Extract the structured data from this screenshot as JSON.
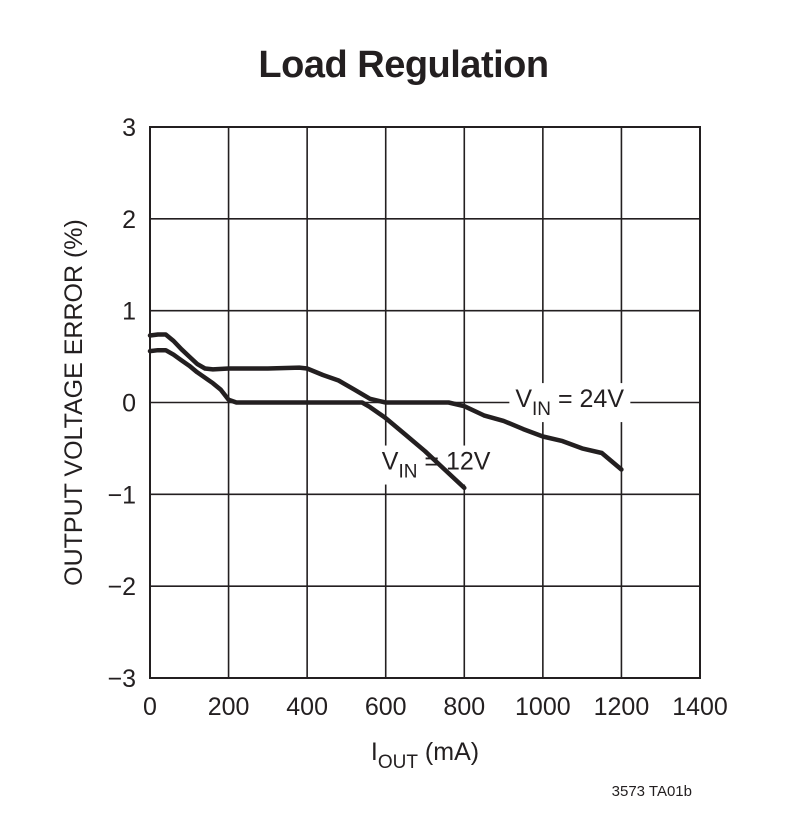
{
  "chart_data": {
    "type": "line",
    "title": "Load Regulation",
    "xlabel": "I_OUT (mA)",
    "xlabel_main": "I",
    "xlabel_sub": "OUT",
    "xlabel_suffix": " (mA)",
    "ylabel": "OUTPUT VOLTAGE ERROR (%)",
    "xlim": [
      0,
      1400
    ],
    "ylim": [
      -3,
      3
    ],
    "xticks": [
      0,
      200,
      400,
      600,
      800,
      1000,
      1200,
      1400
    ],
    "xtick_labels": [
      "0",
      "200",
      "400",
      "600",
      "800",
      "1000",
      "1200",
      "1400"
    ],
    "yticks": [
      3,
      2,
      1,
      0,
      -1,
      -2,
      -3
    ],
    "ytick_labels": [
      "3",
      "2",
      "1",
      "0",
      "−1",
      "−2",
      "−3"
    ],
    "grid": true,
    "series": [
      {
        "name": "VIN = 12V",
        "label_main": "V",
        "label_sub": "IN",
        "label_suffix": " = 12V",
        "x": [
          0,
          20,
          40,
          60,
          80,
          100,
          120,
          140,
          160,
          180,
          200,
          220,
          240,
          260,
          300,
          400,
          500,
          540,
          560,
          600,
          650,
          700,
          750,
          800
        ],
        "y": [
          0.56,
          0.57,
          0.57,
          0.52,
          0.46,
          0.4,
          0.33,
          0.27,
          0.21,
          0.14,
          0.03,
          0.0,
          0.0,
          0.0,
          0.0,
          0.0,
          0.0,
          0.0,
          -0.05,
          -0.17,
          -0.35,
          -0.53,
          -0.73,
          -0.93
        ]
      },
      {
        "name": "VIN = 24V",
        "label_main": "V",
        "label_sub": "IN",
        "label_suffix": " = 24V",
        "x": [
          0,
          20,
          40,
          60,
          80,
          100,
          120,
          140,
          160,
          200,
          300,
          380,
          400,
          440,
          480,
          520,
          560,
          600,
          650,
          700,
          740,
          760,
          800,
          850,
          900,
          950,
          1000,
          1050,
          1100,
          1150,
          1200
        ],
        "y": [
          0.73,
          0.74,
          0.74,
          0.67,
          0.58,
          0.5,
          0.42,
          0.37,
          0.36,
          0.37,
          0.37,
          0.38,
          0.37,
          0.3,
          0.24,
          0.14,
          0.04,
          0.0,
          0.0,
          0.0,
          0.0,
          0.0,
          -0.04,
          -0.14,
          -0.2,
          -0.29,
          -0.37,
          -0.42,
          -0.5,
          -0.55,
          -0.73
        ]
      }
    ],
    "annotations": [
      {
        "series": 0,
        "x": 590,
        "y": -0.73
      },
      {
        "series": 1,
        "x": 930,
        "y": -0.05
      }
    ],
    "figure_code": "3573 TA01b"
  }
}
